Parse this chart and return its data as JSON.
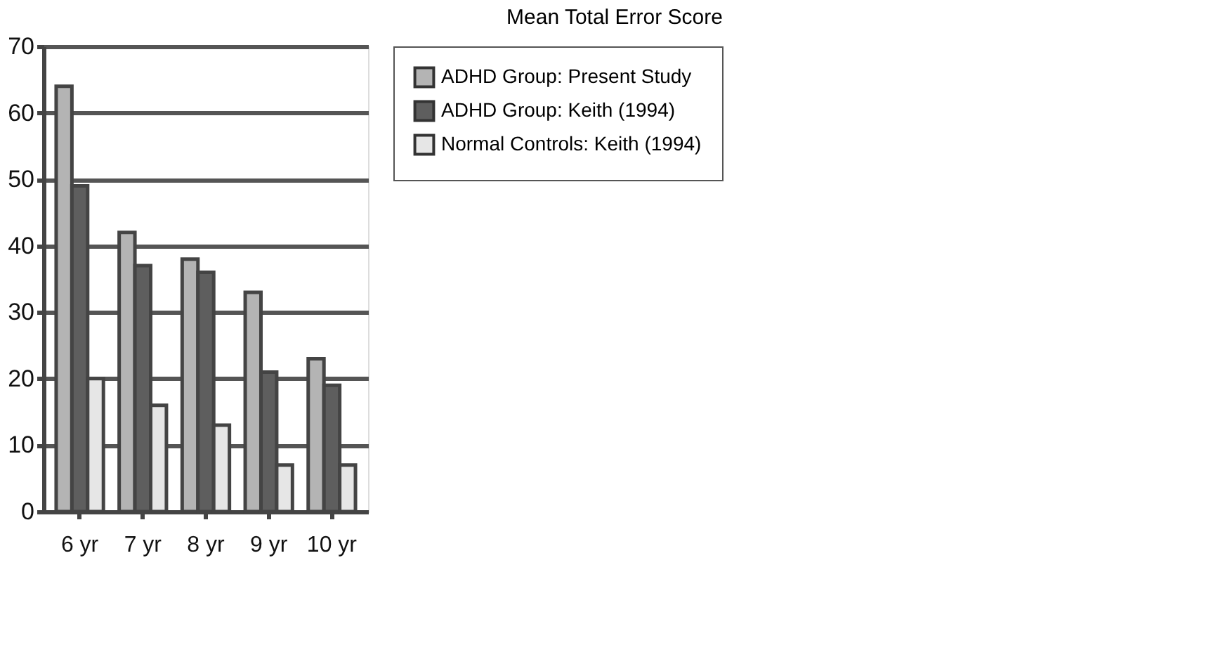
{
  "chart_data": {
    "type": "bar",
    "title": "Mean Total Error Score",
    "categories": [
      "6 yr",
      "7 yr",
      "8 yr",
      "9 yr",
      "10 yr"
    ],
    "series": [
      {
        "name": "ADHD Group: Present Study",
        "color": "#b4b4b4",
        "values": [
          64,
          42,
          38,
          33,
          23
        ]
      },
      {
        "name": "ADHD Group: Keith (1994)",
        "color": "#5e5e5e",
        "values": [
          49,
          37,
          36,
          21,
          19
        ]
      },
      {
        "name": "Normal Controls: Keith (1994)",
        "color": "#e6e6e6",
        "values": [
          20,
          16,
          13,
          7,
          7
        ]
      }
    ],
    "ylim": [
      0,
      70
    ],
    "yticks": [
      0,
      10,
      20,
      30,
      40,
      50,
      60,
      70
    ],
    "grid": "y",
    "legend": "right"
  }
}
